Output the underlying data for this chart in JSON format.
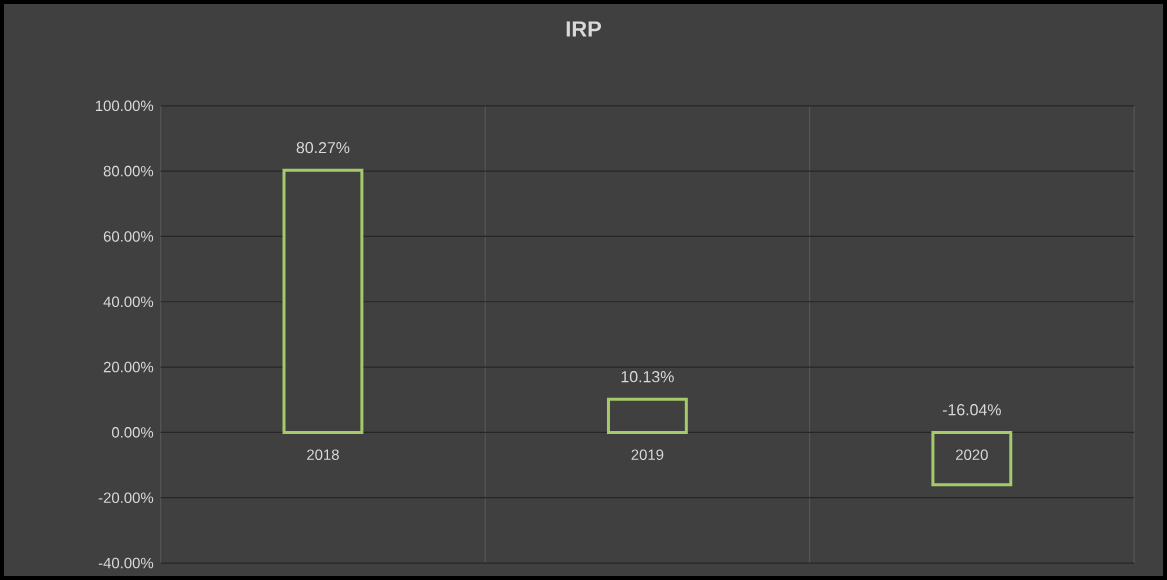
{
  "chart_data": {
    "type": "bar",
    "title": "IRP",
    "categories": [
      "2018",
      "2019",
      "2020"
    ],
    "values": [
      80.27,
      10.13,
      -16.04
    ],
    "value_labels": [
      "80.27%",
      "10.13%",
      "-16.04%"
    ],
    "color": "#a6c96a",
    "ylim": [
      -40,
      100
    ],
    "yticks": [
      {
        "value": -40,
        "label": "-40.00%"
      },
      {
        "value": -20,
        "label": "-20.00%"
      },
      {
        "value": 0,
        "label": "0.00%"
      },
      {
        "value": 20,
        "label": "20.00%"
      },
      {
        "value": 40,
        "label": "40.00%"
      },
      {
        "value": 60,
        "label": "60.00%"
      },
      {
        "value": 80,
        "label": "80.00%"
      },
      {
        "value": 100,
        "label": "100.00%"
      }
    ],
    "grid": true
  }
}
